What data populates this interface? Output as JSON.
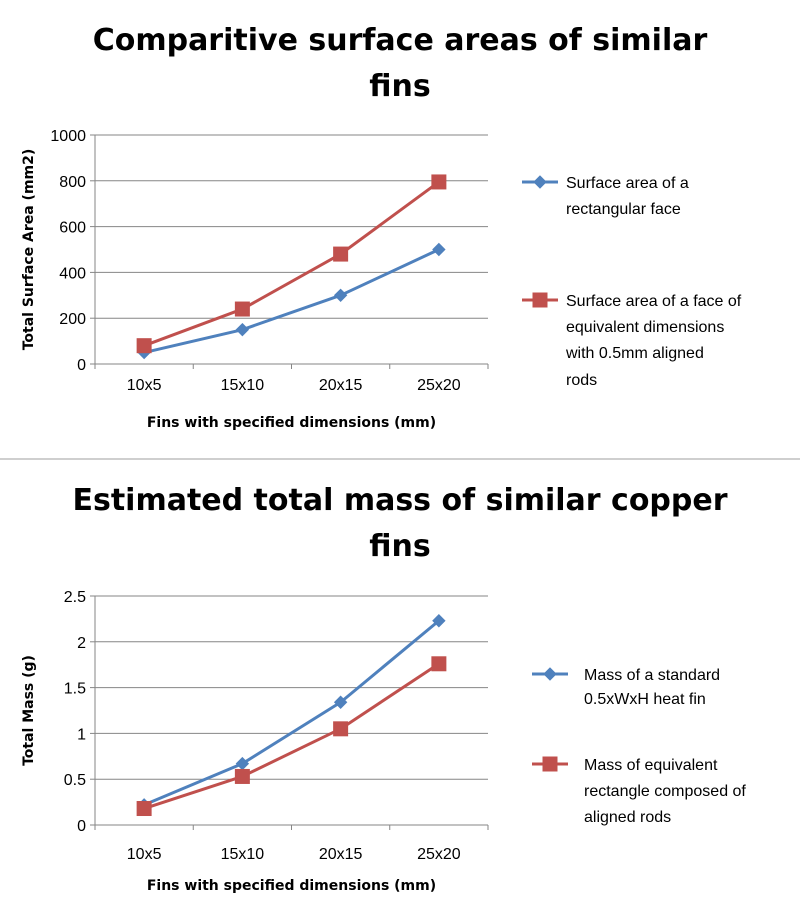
{
  "chart_data": [
    {
      "type": "line",
      "title": "Comparitive surface areas of similar fins",
      "title_lines": [
        "Comparitive surface areas of similar",
        "fins"
      ],
      "xlabel": "Fins with specified dimensions (mm)",
      "ylabel": "Total Surface Area (mm2)",
      "categories": [
        "10x5",
        "15x10",
        "20x15",
        "25x20"
      ],
      "ylim": [
        0,
        1000
      ],
      "yticks": [
        "0",
        "200",
        "400",
        "600",
        "800",
        "1000"
      ],
      "grid": true,
      "legend_position": "right",
      "series": [
        {
          "name": "Surface area of a rectangular face",
          "name_lines": [
            "Surface area of a",
            "rectangular face"
          ],
          "values": [
            50,
            150,
            300,
            500
          ],
          "color": "#4F81BD",
          "marker": "diamond"
        },
        {
          "name": "Surface area of a face of equivalent dimensions with 0.5mm aligned rods",
          "name_lines": [
            "Surface area of a face of",
            "equivalent dimensions",
            "with 0.5mm aligned",
            "rods"
          ],
          "values": [
            80,
            240,
            480,
            795
          ],
          "color": "#C0504D",
          "marker": "square"
        }
      ]
    },
    {
      "type": "line",
      "title": "Estimated total mass of similar copper fins",
      "title_lines": [
        "Estimated total mass of similar copper",
        "fins"
      ],
      "xlabel": "Fins with specified dimensions (mm)",
      "ylabel": "Total Mass (g)",
      "categories": [
        "10x5",
        "15x10",
        "20x15",
        "25x20"
      ],
      "ylim": [
        0,
        2.5
      ],
      "yticks": [
        "0",
        "0.5",
        "1",
        "1.5",
        "2",
        "2.5"
      ],
      "grid": true,
      "legend_position": "right",
      "series": [
        {
          "name": "Mass of a standard 0.5xWxH heat fin",
          "name_lines": [
            "Mass of a standard",
            "0.5xWxH heat fin"
          ],
          "values": [
            0.22,
            0.67,
            1.34,
            2.23
          ],
          "color": "#4F81BD",
          "marker": "diamond"
        },
        {
          "name": "Mass of equivalent rectangle composed of aligned rods",
          "name_lines": [
            "Mass of equivalent",
            "rectangle composed of",
            "aligned rods"
          ],
          "values": [
            0.18,
            0.53,
            1.05,
            1.76
          ],
          "color": "#C0504D",
          "marker": "square"
        }
      ]
    }
  ]
}
